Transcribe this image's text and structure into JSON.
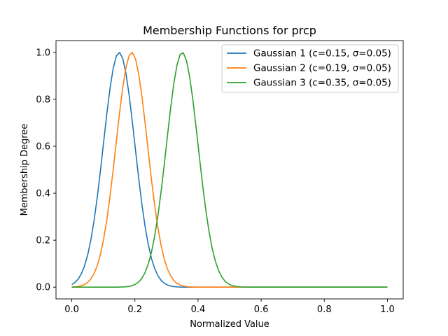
{
  "chart_data": {
    "type": "line",
    "title": "Membership Functions for prcp",
    "xlabel": "Normalized Value",
    "ylabel": "Membership Degree",
    "xlim": [
      -0.05,
      1.05
    ],
    "ylim": [
      -0.05,
      1.05
    ],
    "xticks": [
      0.0,
      0.2,
      0.4,
      0.6,
      0.8,
      1.0
    ],
    "yticks": [
      0.0,
      0.2,
      0.4,
      0.6,
      0.8,
      1.0
    ],
    "x_tick_labels": [
      "0.0",
      "0.2",
      "0.4",
      "0.6",
      "0.8",
      "1.0"
    ],
    "y_tick_labels": [
      "0.0",
      "0.2",
      "0.4",
      "0.6",
      "0.8",
      "1.0"
    ],
    "grid": false,
    "legend_position": "top-right",
    "sample_count": 100,
    "x_range": [
      0.0,
      1.0
    ],
    "series": [
      {
        "name": "Gaussian 1 (c=0.15, σ=0.05)",
        "function": "gaussian",
        "c": 0.15,
        "sigma": 0.05,
        "color": "#1f77b4"
      },
      {
        "name": "Gaussian 2 (c=0.19, σ=0.05)",
        "function": "gaussian",
        "c": 0.19,
        "sigma": 0.05,
        "color": "#ff7f0e"
      },
      {
        "name": "Gaussian 3 (c=0.35, σ=0.05)",
        "function": "gaussian",
        "c": 0.35,
        "sigma": 0.05,
        "color": "#2ca02c"
      }
    ]
  }
}
